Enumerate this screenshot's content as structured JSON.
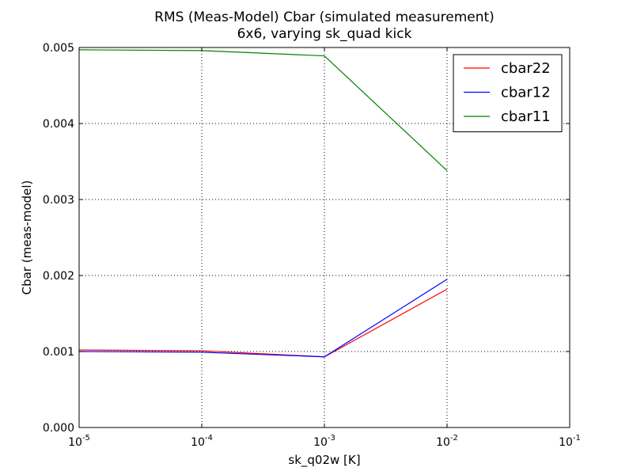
{
  "chart_data": {
    "type": "line",
    "title": "RMS (Meas-Model) Cbar (simulated measurement)",
    "subtitle": "6x6, varying sk_quad kick",
    "xlabel": "sk_q02w [K]",
    "ylabel": "Cbar (meas-model)",
    "xscale": "log",
    "xlim": [
      1e-05,
      0.1
    ],
    "ylim": [
      0,
      0.005
    ],
    "x_ticks": [
      {
        "base": "10",
        "exp": "-5"
      },
      {
        "base": "10",
        "exp": "-4"
      },
      {
        "base": "10",
        "exp": "-3"
      },
      {
        "base": "10",
        "exp": "-2"
      },
      {
        "base": "10",
        "exp": "-1"
      }
    ],
    "y_ticks": [
      "0.000",
      "0.001",
      "0.002",
      "0.003",
      "0.004",
      "0.005"
    ],
    "grid": true,
    "legend_position": "top-right",
    "x": [
      1e-05,
      0.0001,
      0.001,
      0.01
    ],
    "series": [
      {
        "name": "cbar22",
        "color": "#ff0000",
        "values": [
          0.00102,
          0.00101,
          0.00093,
          0.00182
        ]
      },
      {
        "name": "cbar12",
        "color": "#0000ff",
        "values": [
          0.001,
          0.00099,
          0.00093,
          0.00195
        ]
      },
      {
        "name": "cbar11",
        "color": "#008000",
        "values": [
          0.00497,
          0.00496,
          0.00489,
          0.00338
        ]
      }
    ]
  }
}
